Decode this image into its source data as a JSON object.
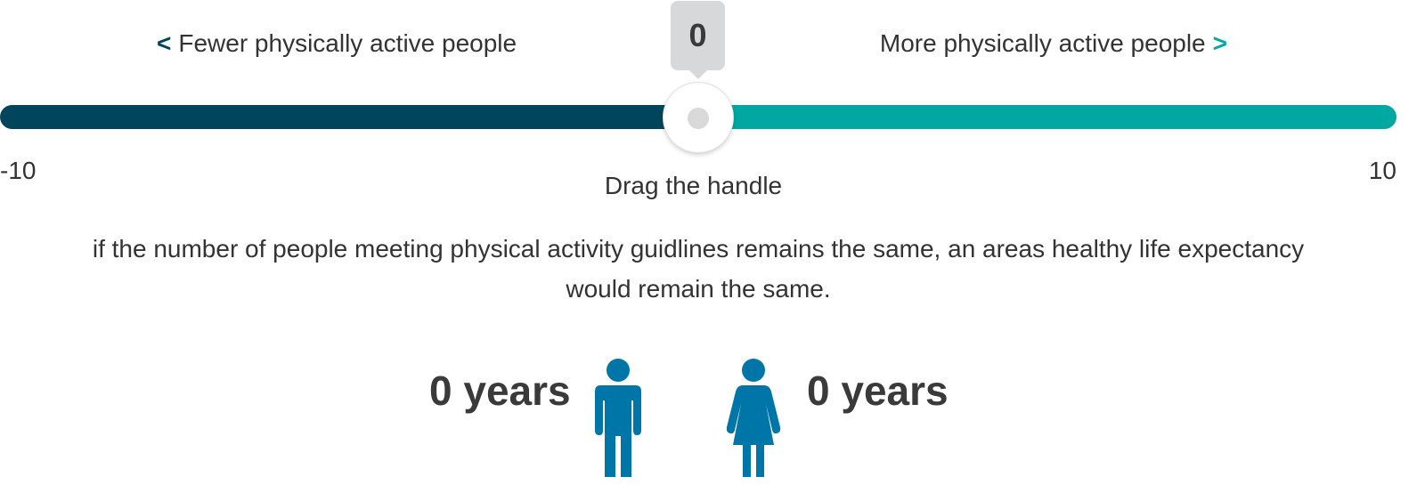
{
  "slider": {
    "left_label": "Fewer physically active people",
    "left_chevron": "<",
    "right_label": "More physically active people",
    "right_chevron": ">",
    "value": "0",
    "min_label": "-10",
    "max_label": "10",
    "min": -10,
    "max": 10,
    "current": 0,
    "hint": "Drag the handle",
    "colors": {
      "decrease": "#00455c",
      "increase": "#00a8a1",
      "handle": "#ffffff",
      "tooltip": "#d7d8d9"
    }
  },
  "result": {
    "description": "if the number of people meeting physical activity guidlines remains the same, an areas healthy life expectancy would remain the same.",
    "male_years": "0 years",
    "female_years": "0 years",
    "male_icon": "male-person-icon",
    "female_icon": "female-person-icon",
    "icon_color": "#0076a8"
  }
}
